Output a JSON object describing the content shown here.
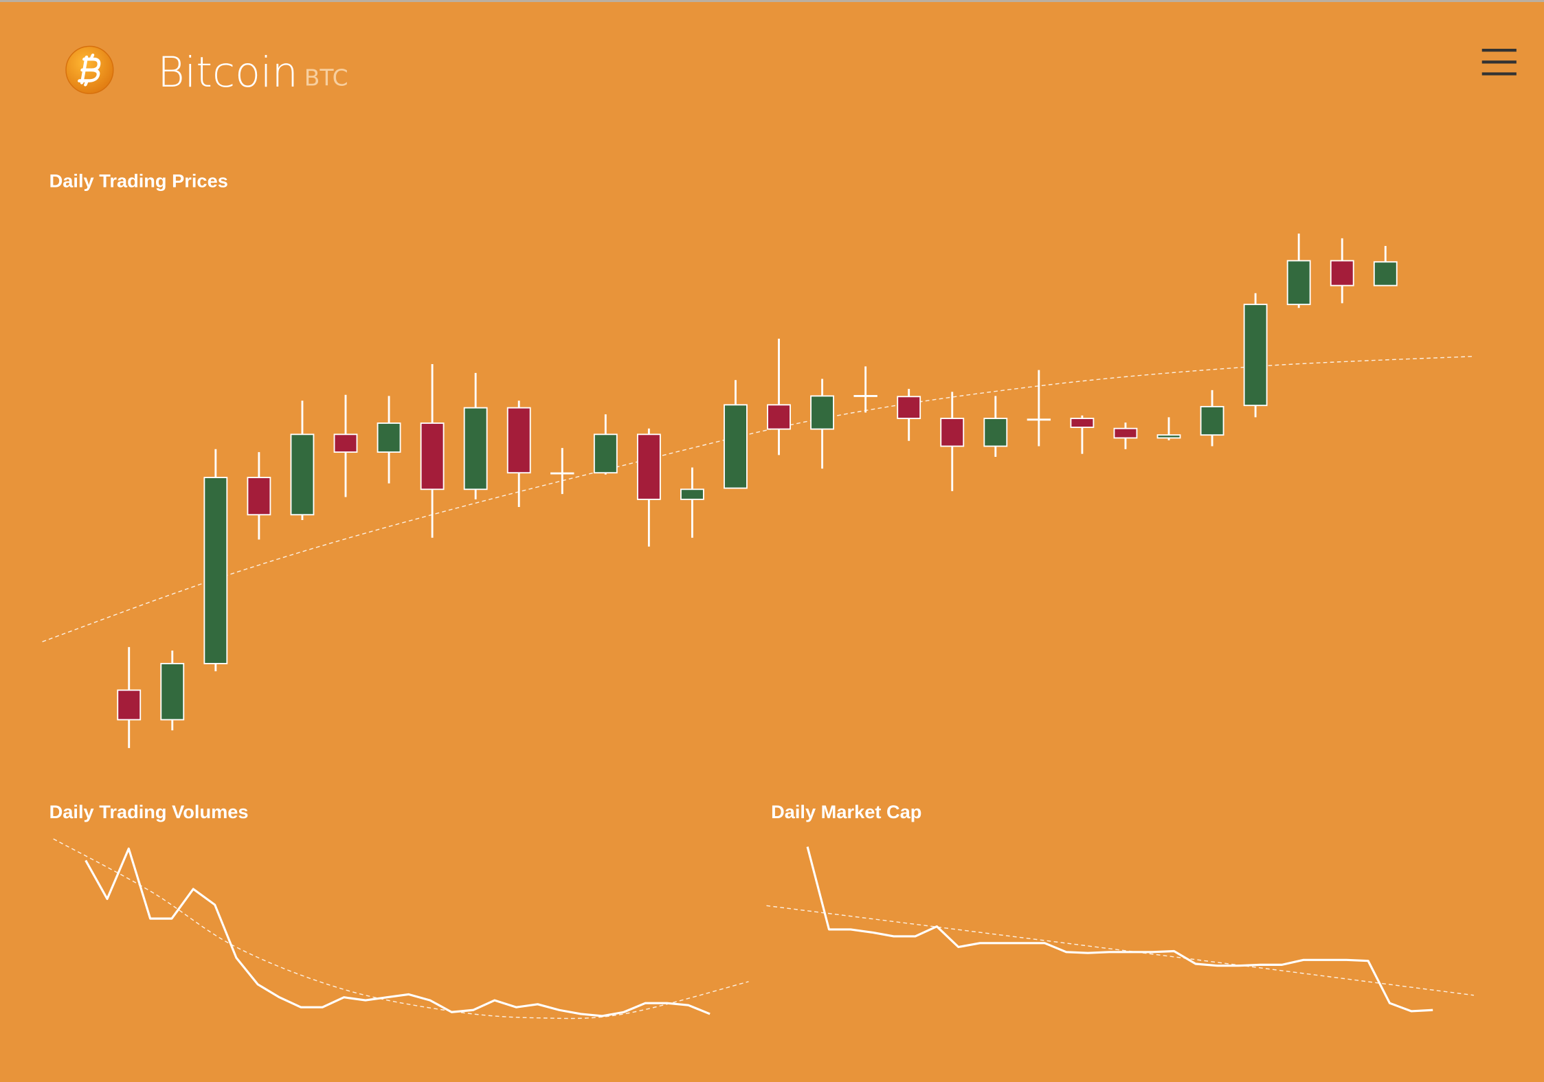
{
  "header": {
    "title": "Bitcoin",
    "ticker": "BTC"
  },
  "chart_data": [
    {
      "type": "candlestick",
      "title": "Daily Trading Prices",
      "open": [
        16.5,
        11.5,
        21,
        52.5,
        46.2,
        59.8,
        56.8,
        61.7,
        50.5,
        64.3,
        53.2,
        53.3,
        59.8,
        48.8,
        50.7,
        64.8,
        60.7,
        66.3,
        66.2,
        62.5,
        57.8,
        62.3,
        62.5,
        60.8,
        59.2,
        59.7,
        64.7,
        81.8,
        89.2,
        85
      ],
      "high": [
        23.8,
        23.2,
        57.3,
        56.8,
        65.5,
        66.5,
        66.3,
        71.7,
        70.2,
        65.5,
        57.5,
        63.2,
        60.8,
        54.2,
        69,
        76,
        69.2,
        71.3,
        67.5,
        67,
        66.3,
        70.7,
        63,
        61.8,
        62.7,
        67.3,
        83.7,
        93.8,
        93,
        91.7
      ],
      "low": [
        6.7,
        9.7,
        19.7,
        42,
        45.3,
        49.2,
        51.5,
        42.3,
        48.8,
        47.5,
        49.7,
        53,
        40.8,
        42.3,
        50.7,
        56.3,
        54,
        63.5,
        58.7,
        50.2,
        56,
        57.8,
        56.5,
        57.3,
        58.8,
        57.8,
        62.7,
        81.2,
        82,
        85
      ],
      "close": [
        11.5,
        21,
        52.5,
        46.2,
        59.8,
        56.8,
        61.7,
        50.5,
        64.3,
        53.3,
        53.2,
        59.8,
        48.8,
        50.5,
        64.8,
        60.7,
        66.3,
        66.3,
        62.5,
        57.8,
        62.5,
        62.3,
        61,
        59.2,
        59.7,
        64.5,
        81.8,
        89.2,
        85,
        89
      ],
      "up_color": "#336a3e",
      "down_color": "#a41d3a",
      "ylim": [
        0,
        100
      ],
      "trend": {
        "x": [
          -2,
          2,
          6,
          11,
          16,
          21,
          26,
          31
        ],
        "values": [
          24.7,
          35.3,
          44.2,
          53.8,
          62.5,
          68,
          71.3,
          73
        ]
      }
    },
    {
      "type": "line",
      "title": "Daily Trading Volumes",
      "values": [
        87.4,
        66.8,
        93.7,
        56.3,
        56.3,
        72.1,
        63.7,
        35.3,
        21.1,
        14.2,
        8.9,
        8.9,
        14.2,
        12.6,
        14.2,
        15.8,
        12.6,
        6.3,
        7.4,
        12.6,
        8.9,
        10.5,
        7.4,
        5.3,
        4.2,
        6.3,
        11.1,
        11.1,
        10,
        5.3
      ],
      "ylim": [
        0,
        100
      ],
      "trend": {
        "x": [
          -1.5,
          3,
          7,
          12,
          17,
          21,
          25,
          30.8
        ],
        "values": [
          98.9,
          71,
          41,
          18.4,
          6.8,
          3.2,
          5.3,
          22.6
        ]
      }
    },
    {
      "type": "line",
      "title": "Daily Market Cap",
      "values": [
        94.7,
        50.5,
        50.5,
        48.9,
        46.8,
        46.8,
        52.1,
        41.1,
        43.2,
        43.2,
        43.2,
        43.2,
        38.4,
        37.9,
        38.4,
        38.4,
        38.4,
        38.9,
        32.1,
        31.1,
        31.1,
        31.6,
        31.6,
        34.2,
        34.2,
        34.2,
        33.7,
        11.1,
        6.8,
        7.4
      ],
      "ylim": [
        0,
        100
      ],
      "trend": {
        "x": [
          -1.9,
          14.5,
          30.9
        ],
        "values": [
          63.2,
          39.5,
          15.3
        ]
      }
    }
  ]
}
